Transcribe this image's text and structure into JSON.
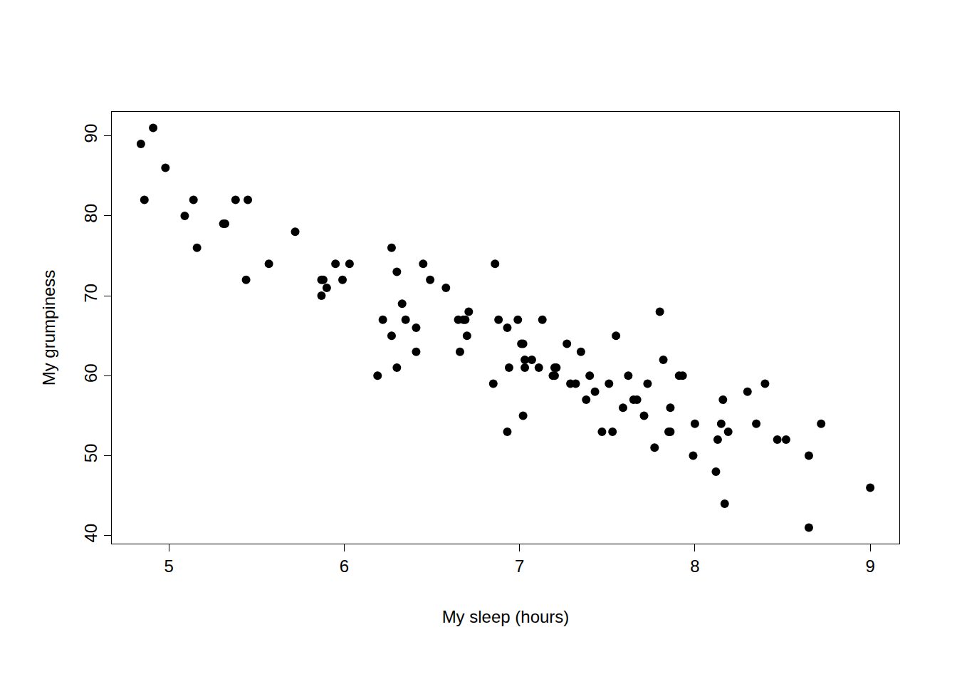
{
  "chart_data": {
    "type": "scatter",
    "x_label": "My sleep (hours)",
    "y_label": "My grumpiness",
    "x": [
      4.84,
      4.91,
      4.86,
      4.98,
      5.09,
      5.14,
      5.16,
      5.31,
      5.32,
      5.38,
      5.45,
      5.44,
      5.57,
      5.72,
      5.87,
      5.87,
      5.88,
      5.9,
      5.95,
      5.99,
      6.03,
      6.19,
      6.22,
      6.27,
      6.27,
      6.3,
      6.3,
      6.33,
      6.35,
      6.41,
      6.41,
      6.45,
      6.49,
      6.58,
      6.65,
      6.66,
      6.68,
      6.69,
      6.7,
      6.71,
      6.85,
      6.86,
      6.88,
      6.93,
      6.93,
      6.94,
      6.99,
      7.01,
      7.02,
      7.02,
      7.03,
      7.03,
      7.07,
      7.11,
      7.13,
      7.19,
      7.2,
      7.2,
      7.21,
      7.27,
      7.29,
      7.32,
      7.35,
      7.38,
      7.4,
      7.43,
      7.47,
      7.51,
      7.53,
      7.55,
      7.59,
      7.62,
      7.65,
      7.67,
      7.71,
      7.73,
      7.77,
      7.8,
      7.82,
      7.85,
      7.86,
      7.86,
      7.91,
      7.93,
      7.99,
      8.0,
      8.12,
      8.13,
      8.15,
      8.16,
      8.17,
      8.19,
      8.3,
      8.35,
      8.4,
      8.47,
      8.52,
      8.65,
      8.65,
      8.72,
      9.0
    ],
    "values": [
      89,
      91,
      82,
      86,
      80,
      82,
      76,
      79,
      79,
      82,
      82,
      72,
      74,
      78,
      70,
      72,
      72,
      71,
      74,
      72,
      74,
      60,
      67,
      76,
      65,
      73,
      61,
      69,
      67,
      66,
      63,
      74,
      72,
      71,
      67,
      63,
      67,
      67,
      65,
      68,
      59,
      74,
      67,
      66,
      53,
      61,
      67,
      64,
      64,
      55,
      62,
      61,
      62,
      61,
      67,
      60,
      61,
      60,
      61,
      64,
      59,
      59,
      63,
      57,
      60,
      58,
      53,
      59,
      53,
      65,
      56,
      60,
      57,
      57,
      55,
      59,
      51,
      68,
      62,
      53,
      56,
      53,
      60,
      60,
      50,
      54,
      48,
      52,
      54,
      57,
      44,
      53,
      58,
      54,
      59,
      52,
      52,
      50,
      41,
      54,
      46
    ],
    "color": "#000000",
    "marker": "circle",
    "xlim": [
      4.674,
      9.166
    ],
    "ylim": [
      39,
      93
    ],
    "xticks": [
      5,
      6,
      7,
      8,
      9
    ],
    "yticks": [
      40,
      50,
      60,
      70,
      80,
      90
    ],
    "grid": false
  }
}
